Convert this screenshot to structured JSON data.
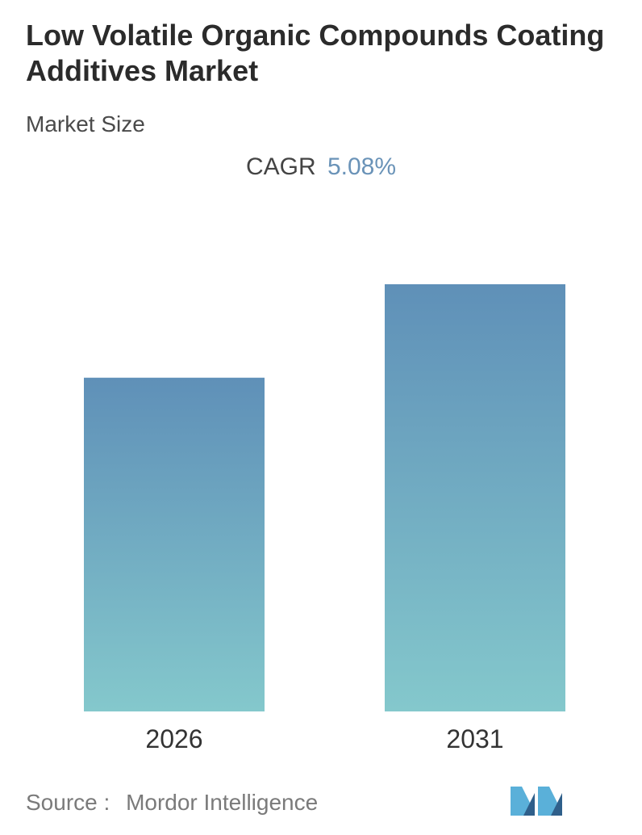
{
  "title": "Low Volatile Organic Compounds Coating Additives Market",
  "subtitle": "Market Size",
  "cagr": {
    "label": "CAGR",
    "value": "5.08%"
  },
  "source": {
    "label": "Source :",
    "name": "Mordor Intelligence"
  },
  "logo": {
    "icon": "mordor-intelligence-logo-icon",
    "colors": [
      "#5ab0d9",
      "#2f5f8a"
    ]
  },
  "chart_data": {
    "type": "bar",
    "categories": [
      "2026",
      "2031"
    ],
    "values": [
      1.0,
      1.28
    ],
    "title": "Low Volatile Organic Compounds Coating Additives Market",
    "xlabel": "",
    "ylabel": "",
    "ylim": [
      0,
      1.28
    ],
    "grid": false,
    "legend": "none",
    "colors": {
      "bar_top": "#5f90b8",
      "bar_bottom": "#84c8cc"
    }
  }
}
